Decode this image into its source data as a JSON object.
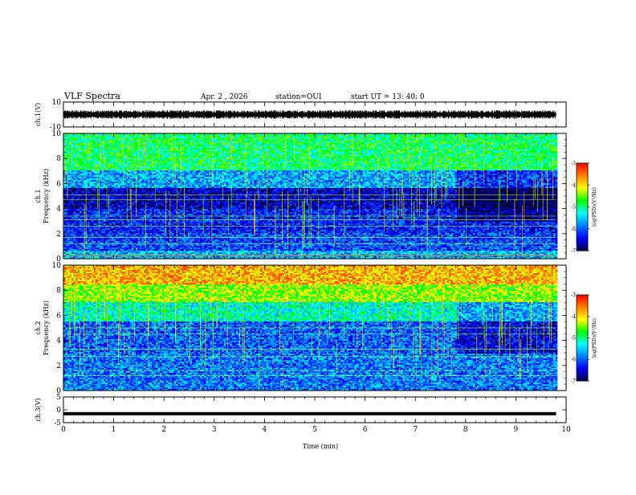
{
  "header": {
    "title": "VLF Spectra",
    "date": "Apr. 2  , 2026",
    "station": "station=OUI",
    "start": "start  UT  =   13: 40: 0"
  },
  "chart_data": [
    {
      "type": "line",
      "panel": "ch1-waveform",
      "ylabel": "ch.1(V)",
      "ylim": [
        -10,
        10
      ],
      "ytick_labels": [
        "10",
        "-10"
      ],
      "xlim": [
        0,
        10
      ],
      "series": [
        {
          "values_description_free": true,
          "mean": 0,
          "amplitude_approx": 2.5
        }
      ],
      "color": "#000000"
    },
    {
      "type": "heatmap",
      "panel": "ch1-spectrogram",
      "ylabel": "ch.1\nFrequency  (kHz)",
      "ylabel_lines": [
        "ch.1",
        "Frequency  (kHz)"
      ],
      "ylim": [
        0,
        10
      ],
      "xlim": [
        0,
        10
      ],
      "ytick_labels": [
        "0",
        "2",
        "4",
        "6",
        "8",
        "10"
      ],
      "colorbar": {
        "label": "log(PSD)(V²/Hz)",
        "range": [
          -7,
          -3
        ],
        "tick_labels": [
          "-3",
          "-4",
          "-5",
          "-6",
          "-7"
        ]
      },
      "data_end_min": 9.8,
      "bands": [
        {
          "fmin": 0.0,
          "fmax": 0.6,
          "level": -5.6
        },
        {
          "fmin": 0.6,
          "fmax": 2.0,
          "level": -6.1
        },
        {
          "fmin": 2.0,
          "fmax": 4.0,
          "level": -6.3
        },
        {
          "fmin": 4.0,
          "fmax": 5.6,
          "level": -6.6
        },
        {
          "fmin": 5.6,
          "fmax": 7.0,
          "level": -5.7
        },
        {
          "fmin": 7.0,
          "fmax": 10.0,
          "level": -4.9
        }
      ],
      "tones_khz": [
        0.3,
        1.2,
        1.7,
        2.6,
        3.1,
        3.4,
        4.7,
        5.1
      ]
    },
    {
      "type": "heatmap",
      "panel": "ch2-spectrogram",
      "ylabel": "ch.2\nFrequency  (kHz)",
      "ylabel_lines": [
        "ch.2",
        "Frequency  (kHz)"
      ],
      "ylim": [
        0,
        10
      ],
      "xlim": [
        0,
        10
      ],
      "ytick_labels": [
        "0",
        "2",
        "4",
        "6",
        "8",
        "10"
      ],
      "colorbar": {
        "label": "log(PSD)(V²/Hz)",
        "range": [
          -7,
          -3
        ],
        "tick_labels": [
          "-3",
          "-4",
          "-5",
          "-6",
          "-7"
        ]
      },
      "data_end_min": 9.8,
      "bands": [
        {
          "fmin": 0.0,
          "fmax": 1.0,
          "level": -5.9
        },
        {
          "fmin": 1.0,
          "fmax": 3.0,
          "level": -5.9
        },
        {
          "fmin": 3.0,
          "fmax": 5.5,
          "level": -6.0
        },
        {
          "fmin": 5.5,
          "fmax": 7.0,
          "level": -5.2
        },
        {
          "fmin": 7.0,
          "fmax": 8.5,
          "level": -4.4
        },
        {
          "fmin": 8.5,
          "fmax": 10.0,
          "level": -3.8
        }
      ],
      "tones_khz": [
        1.2,
        1.6,
        2.7,
        3.3,
        4.5,
        5.0
      ]
    },
    {
      "type": "line",
      "panel": "ch3-waveform",
      "ylabel": "ch.3(V)",
      "ylim": [
        -5,
        5
      ],
      "ytick_labels": [
        "5",
        "0",
        "-5"
      ],
      "xlim": [
        0,
        10
      ],
      "series": [
        {
          "constant": -1.5
        }
      ],
      "color": "#000000"
    }
  ],
  "xaxis": {
    "title": "Time  (min)",
    "range": [
      0,
      10
    ],
    "tick_labels": [
      "0",
      "1",
      "2",
      "3",
      "4",
      "5",
      "6",
      "7",
      "8",
      "9",
      "10"
    ]
  },
  "colormap": [
    "#000040",
    "#0000ff",
    "#0080ff",
    "#00ffff",
    "#00ff00",
    "#ffff00",
    "#ff8000",
    "#ff0000"
  ]
}
